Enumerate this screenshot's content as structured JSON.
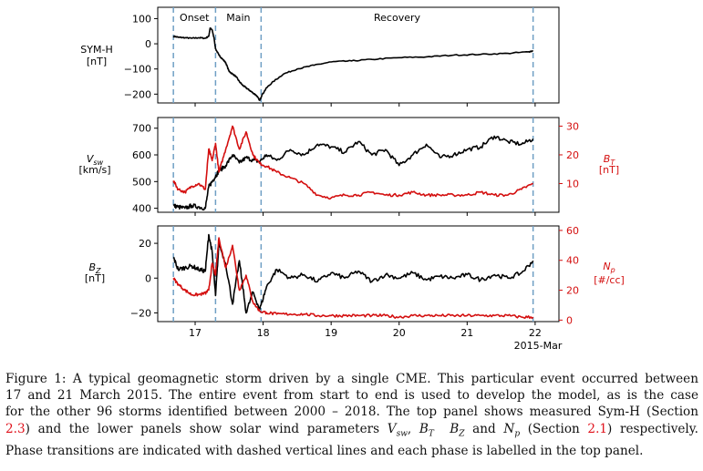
{
  "figure": {
    "phases": [
      {
        "name": "Onset",
        "start": 16.68,
        "end": 17.3
      },
      {
        "name": "Main",
        "start": 17.3,
        "end": 17.97
      },
      {
        "name": "Recovery",
        "start": 17.97,
        "end": 21.97
      }
    ],
    "x_ticks": [
      "17",
      "18",
      "19",
      "20",
      "21",
      "22"
    ],
    "x_tick_values": [
      17,
      18,
      19,
      20,
      21,
      22
    ],
    "x_sublabel": "2015-Mar",
    "x_range": [
      16.45,
      22.35
    ],
    "colors": {
      "primary": "#000000",
      "secondary": "#d40f0f",
      "phase_line": "#6f9fc4"
    }
  },
  "chart_data": [
    {
      "type": "line",
      "panel": "top",
      "left_label": [
        "SYM-H",
        "[nT]"
      ],
      "ylim": [
        -235,
        145
      ],
      "yticks": [
        100,
        0,
        -100,
        -200
      ],
      "ytick_labels": [
        "100",
        "0",
        "−100",
        "−200"
      ],
      "series": [
        {
          "name": "SYM-H",
          "axis": "left",
          "color": "#000000",
          "x": [
            16.68,
            16.75,
            16.85,
            16.95,
            17.05,
            17.15,
            17.2,
            17.22,
            17.25,
            17.28,
            17.3,
            17.35,
            17.4,
            17.45,
            17.5,
            17.55,
            17.6,
            17.65,
            17.7,
            17.75,
            17.8,
            17.85,
            17.9,
            17.95,
            17.98,
            18.05,
            18.15,
            18.3,
            18.5,
            18.75,
            19.0,
            19.3,
            19.6,
            20.0,
            20.4,
            20.8,
            21.2,
            21.6,
            21.9,
            21.97
          ],
          "y": [
            30,
            26,
            24,
            22,
            24,
            22,
            30,
            62,
            55,
            20,
            -20,
            -45,
            -60,
            -75,
            -110,
            -120,
            -130,
            -150,
            -165,
            -175,
            -185,
            -195,
            -205,
            -225,
            -205,
            -175,
            -150,
            -120,
            -100,
            -85,
            -72,
            -68,
            -62,
            -55,
            -52,
            -45,
            -42,
            -38,
            -32,
            -28
          ]
        }
      ]
    },
    {
      "type": "line",
      "panel": "middle",
      "left_label": [
        "V_sw",
        "[km/s]"
      ],
      "right_label": [
        "B_T",
        "[nT]"
      ],
      "ylim": [
        385,
        740
      ],
      "yticks": [
        400,
        500,
        600,
        700
      ],
      "ytick_labels": [
        "400",
        "500",
        "600",
        "700"
      ],
      "y2lim": [
        0,
        33
      ],
      "y2ticks": [
        10,
        20,
        30
      ],
      "y2tick_labels": [
        "10",
        "20",
        "30"
      ],
      "series": [
        {
          "name": "V_sw",
          "axis": "left",
          "color": "#000000",
          "x": [
            16.68,
            16.75,
            16.85,
            16.95,
            17.05,
            17.15,
            17.2,
            17.25,
            17.3,
            17.35,
            17.45,
            17.55,
            17.65,
            17.75,
            17.85,
            17.95,
            18.05,
            18.2,
            18.4,
            18.6,
            18.8,
            19.0,
            19.2,
            19.4,
            19.6,
            19.8,
            20.0,
            20.2,
            20.4,
            20.6,
            20.8,
            21.0,
            21.2,
            21.4,
            21.6,
            21.8,
            21.97
          ],
          "y": [
            410,
            405,
            400,
            410,
            405,
            400,
            480,
            500,
            520,
            540,
            560,
            600,
            570,
            590,
            580,
            575,
            600,
            580,
            620,
            600,
            640,
            630,
            610,
            650,
            600,
            620,
            560,
            600,
            640,
            590,
            600,
            620,
            630,
            670,
            650,
            640,
            660
          ]
        },
        {
          "name": "B_T",
          "axis": "right",
          "color": "#d40f0f",
          "x": [
            16.68,
            16.75,
            16.85,
            16.95,
            17.05,
            17.15,
            17.2,
            17.25,
            17.3,
            17.35,
            17.45,
            17.55,
            17.65,
            17.75,
            17.85,
            17.95,
            18.05,
            18.2,
            18.4,
            18.6,
            18.8,
            19.0,
            19.2,
            19.4,
            19.6,
            19.8,
            20.0,
            20.2,
            20.4,
            20.6,
            20.8,
            21.0,
            21.2,
            21.4,
            21.6,
            21.8,
            21.97
          ],
          "y": [
            11,
            8,
            7,
            9,
            10,
            8,
            22,
            18,
            24,
            14,
            22,
            30,
            22,
            28,
            20,
            17,
            16,
            14,
            12,
            10,
            6,
            5,
            6,
            6,
            7,
            6,
            6,
            7,
            6,
            6,
            6,
            6,
            7,
            6,
            6,
            8,
            10
          ]
        }
      ]
    },
    {
      "type": "line",
      "panel": "bottom",
      "left_label": [
        "B_Z",
        "[nT]"
      ],
      "right_label": [
        "N_p",
        "[#/cc]"
      ],
      "ylim": [
        -25,
        30
      ],
      "yticks": [
        20,
        0,
        -20
      ],
      "ytick_labels": [
        "20",
        "0",
        "−20"
      ],
      "y2lim": [
        -1,
        63
      ],
      "y2ticks": [
        0,
        20,
        40,
        60
      ],
      "y2tick_labels": [
        "0",
        "20",
        "40",
        "60"
      ],
      "series": [
        {
          "name": "B_Z",
          "axis": "left",
          "color": "#000000",
          "x": [
            16.68,
            16.75,
            16.85,
            16.95,
            17.05,
            17.15,
            17.2,
            17.25,
            17.3,
            17.35,
            17.45,
            17.55,
            17.65,
            17.75,
            17.85,
            17.95,
            18.05,
            18.2,
            18.4,
            18.6,
            18.8,
            19.0,
            19.2,
            19.4,
            19.6,
            19.8,
            20.0,
            20.2,
            20.4,
            20.6,
            20.8,
            21.0,
            21.2,
            21.4,
            21.6,
            21.8,
            21.97
          ],
          "y": [
            12,
            5,
            6,
            7,
            5,
            4,
            25,
            15,
            -10,
            20,
            8,
            -15,
            10,
            -20,
            -8,
            -18,
            -5,
            5,
            0,
            2,
            -2,
            3,
            0,
            4,
            -2,
            2,
            0,
            3,
            -1,
            1,
            0,
            2,
            -1,
            2,
            0,
            3,
            10
          ]
        },
        {
          "name": "N_p",
          "axis": "right",
          "color": "#d40f0f",
          "x": [
            16.68,
            16.75,
            16.85,
            16.95,
            17.05,
            17.15,
            17.2,
            17.25,
            17.3,
            17.35,
            17.45,
            17.55,
            17.65,
            17.75,
            17.85,
            17.95,
            18.05,
            18.2,
            18.4,
            18.6,
            18.8,
            19.0,
            19.2,
            19.4,
            19.6,
            19.8,
            20.0,
            20.2,
            20.4,
            20.6,
            20.8,
            21.0,
            21.2,
            21.4,
            21.6,
            21.8,
            21.97
          ],
          "y": [
            28,
            24,
            20,
            17,
            17,
            18,
            20,
            38,
            30,
            55,
            35,
            50,
            20,
            30,
            12,
            6,
            5,
            4,
            4,
            4,
            3,
            3,
            3,
            3,
            3,
            3,
            2,
            3,
            3,
            3,
            3,
            3,
            3,
            3,
            3,
            2,
            2
          ]
        }
      ]
    }
  ],
  "caption": {
    "line1": "Figure 1: A typical geomagnetic storm driven by a single CME. This particular event occurred between",
    "line2": "17 and 21 March 2015. The entire event from start to end is used to develop the model, as is the case",
    "line3": "for the other 96 storms identified between 2000 – 2018. The top panel shows measured Sym-H (Section",
    "ref1": "2.3",
    "line4a": ") and the lower panels show solar wind parameters ",
    "v_sw": "V",
    "v_sw_sub": "sw",
    "comma1": ", ",
    "b_t": "B",
    "b_t_sub": "T",
    "sp1": "  ",
    "b_z": "B",
    "b_z_sub": "Z",
    "and": " and ",
    "n_p": "N",
    "n_p_sub": "p",
    "line4b": " (Section ",
    "ref2": "2.1",
    "line4c": ") respectively.",
    "line5": "Phase transitions are indicated with dashed vertical lines and each phase is labelled in the top panel."
  }
}
